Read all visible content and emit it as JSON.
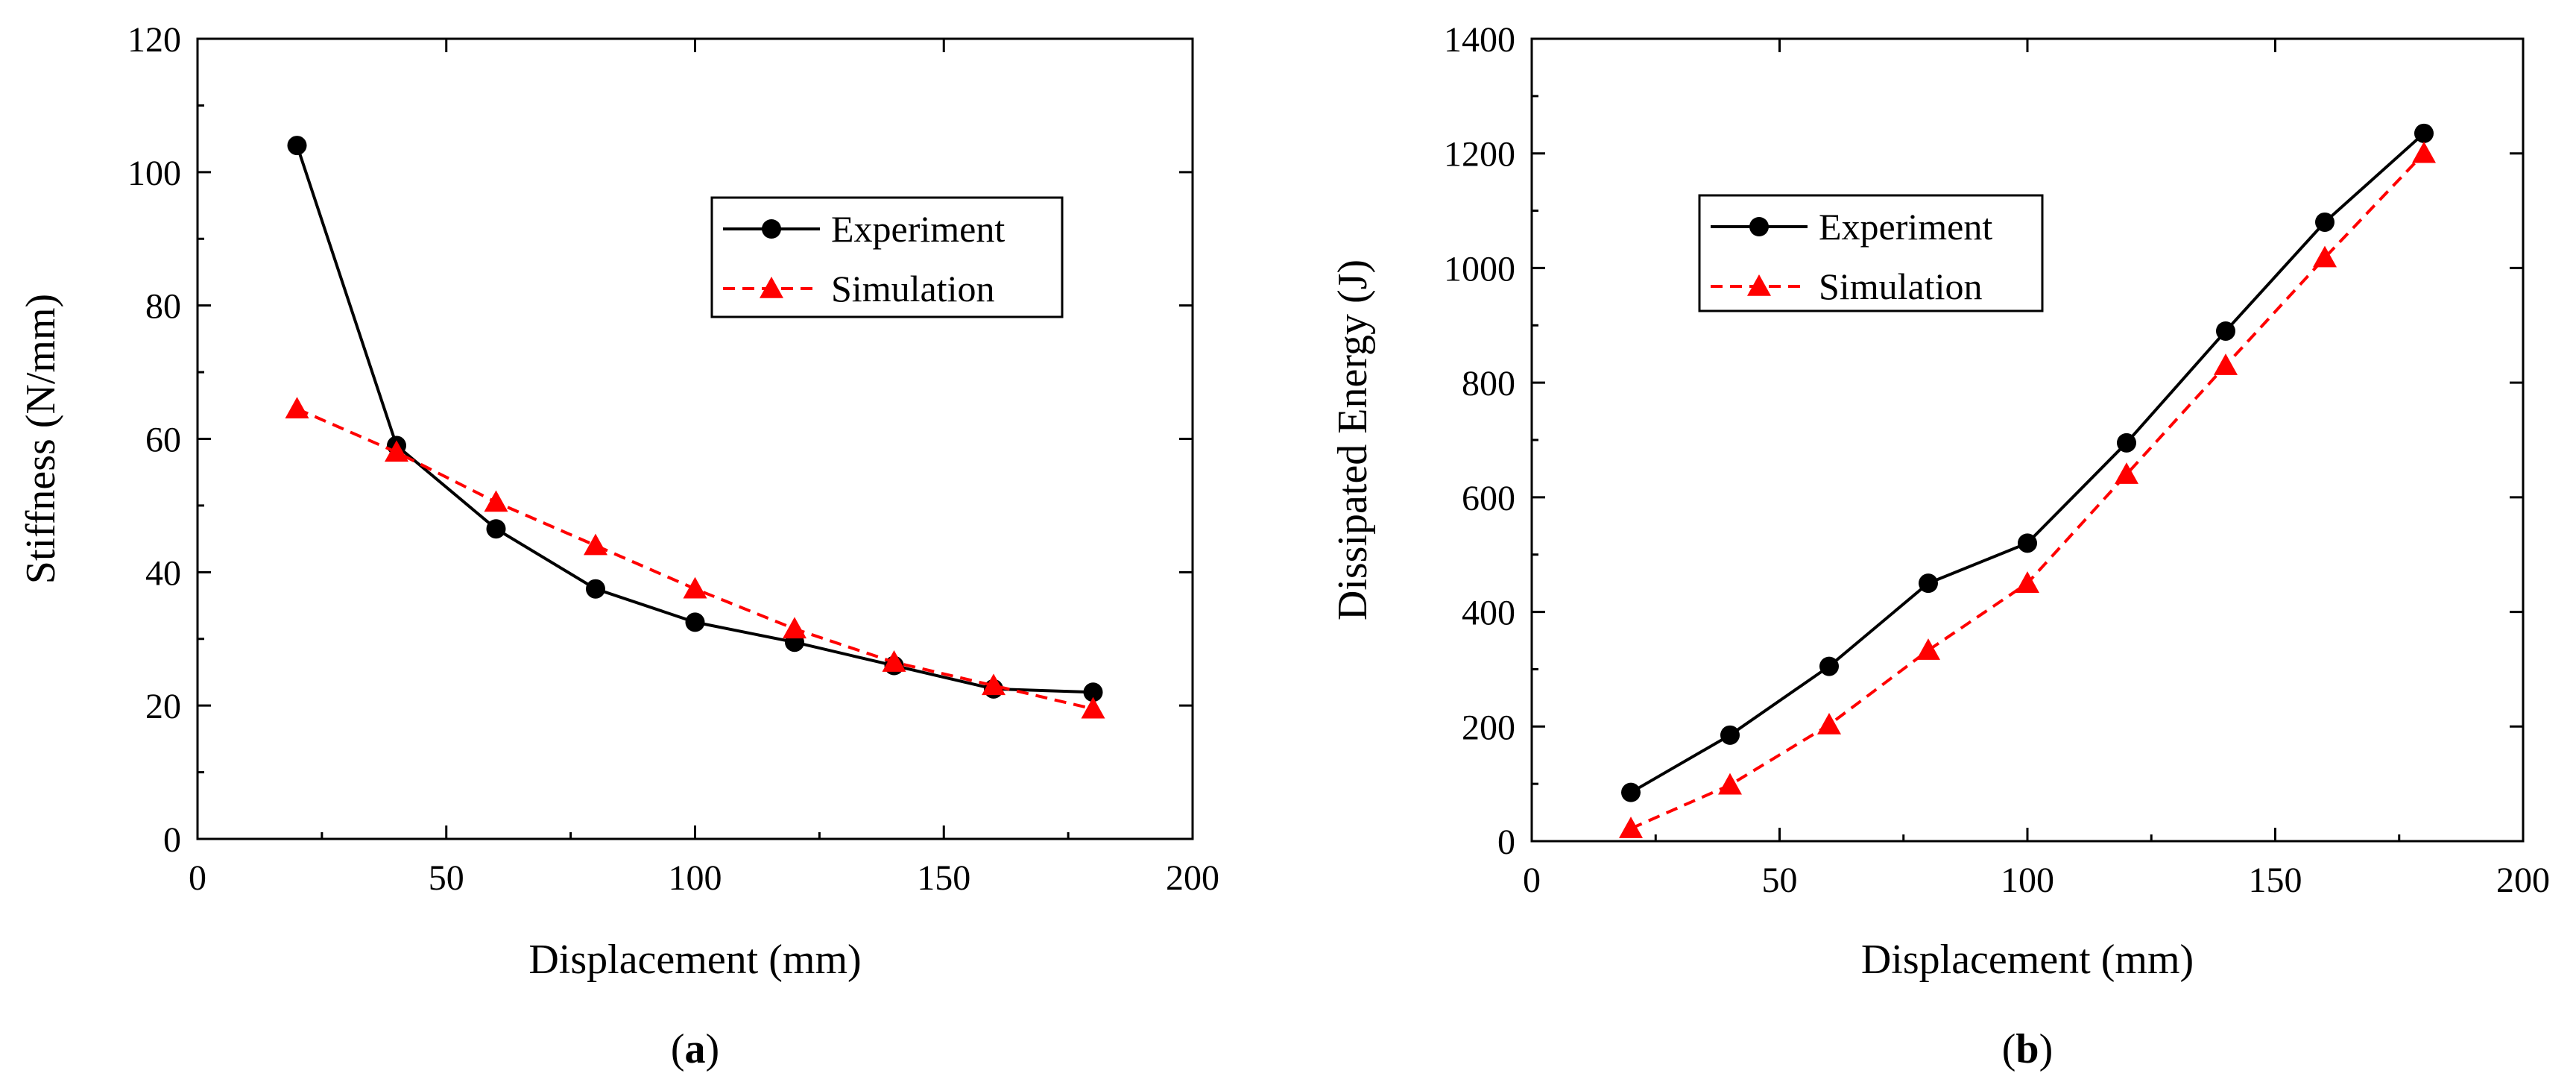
{
  "colors": {
    "experiment": "#000000",
    "simulation": "#ff0000"
  },
  "chart_data": [
    {
      "type": "line",
      "panel_label": "a",
      "title": "",
      "xlabel": "Displacement (mm)",
      "ylabel": "Stiffness (N/mm)",
      "xlim": [
        0,
        200
      ],
      "ylim": [
        0,
        120
      ],
      "xticks": [
        0,
        50,
        100,
        150,
        200
      ],
      "yticks": [
        0,
        20,
        40,
        60,
        80,
        100,
        120
      ],
      "legend_position": "top-right",
      "series": [
        {
          "name": "Experiment",
          "marker": "circle",
          "line": "solid",
          "x": [
            20,
            40,
            60,
            80,
            100,
            120,
            140,
            160,
            180
          ],
          "y": [
            104,
            59,
            46.5,
            37.5,
            32.5,
            29.5,
            26,
            22.5,
            22
          ]
        },
        {
          "name": "Simulation",
          "marker": "triangle",
          "line": "dashed",
          "x": [
            20,
            40,
            60,
            80,
            100,
            120,
            140,
            160,
            180
          ],
          "y": [
            64.5,
            58,
            50.5,
            44,
            37.5,
            31.5,
            26.5,
            23,
            19.5
          ]
        }
      ]
    },
    {
      "type": "line",
      "panel_label": "b",
      "title": "",
      "xlabel": "Displacement (mm)",
      "ylabel": "Dissipated Energy (J)",
      "xlim": [
        0,
        200
      ],
      "ylim": [
        0,
        1400
      ],
      "xticks": [
        0,
        50,
        100,
        150,
        200
      ],
      "yticks": [
        0,
        200,
        400,
        600,
        800,
        1000,
        1200,
        1400
      ],
      "legend_position": "top-left",
      "series": [
        {
          "name": "Experiment",
          "marker": "circle",
          "line": "solid",
          "x": [
            20,
            40,
            60,
            80,
            100,
            120,
            140,
            160,
            180
          ],
          "y": [
            85,
            185,
            305,
            450,
            520,
            695,
            890,
            1080,
            1235
          ]
        },
        {
          "name": "Simulation",
          "marker": "triangle",
          "line": "dashed",
          "x": [
            20,
            40,
            60,
            80,
            100,
            120,
            140,
            160,
            180
          ],
          "y": [
            22,
            98,
            203,
            333,
            450,
            640,
            830,
            1018,
            1200
          ]
        }
      ]
    }
  ]
}
